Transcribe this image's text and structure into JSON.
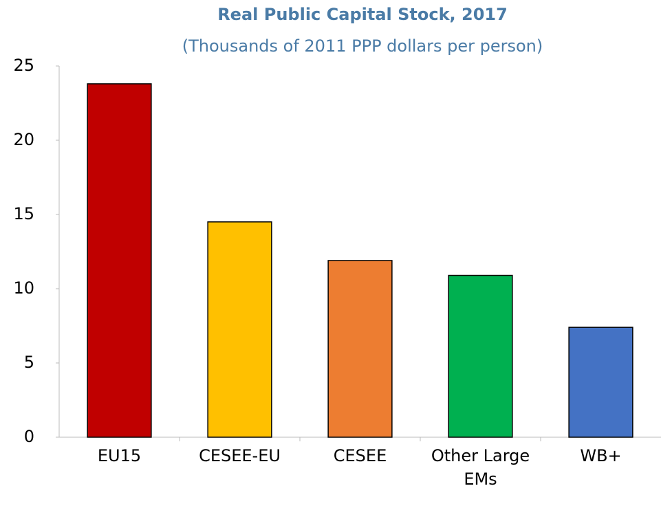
{
  "chart_data": {
    "type": "bar",
    "title": "Real Public Capital Stock, 2017",
    "subtitle": "(Thousands of 2011 PPP dollars per person)",
    "categories": [
      "EU15",
      "CESEE-EU",
      "CESEE",
      "Other Large EMs",
      "WB+"
    ],
    "values": [
      23.8,
      14.5,
      11.9,
      10.9,
      7.4
    ],
    "colors": [
      "#c00000",
      "#ffc000",
      "#ed7d31",
      "#00b050",
      "#4472c4"
    ],
    "ylim": [
      0,
      25
    ],
    "yticks": [
      0,
      5,
      10,
      15,
      20,
      25
    ],
    "grid": false
  }
}
